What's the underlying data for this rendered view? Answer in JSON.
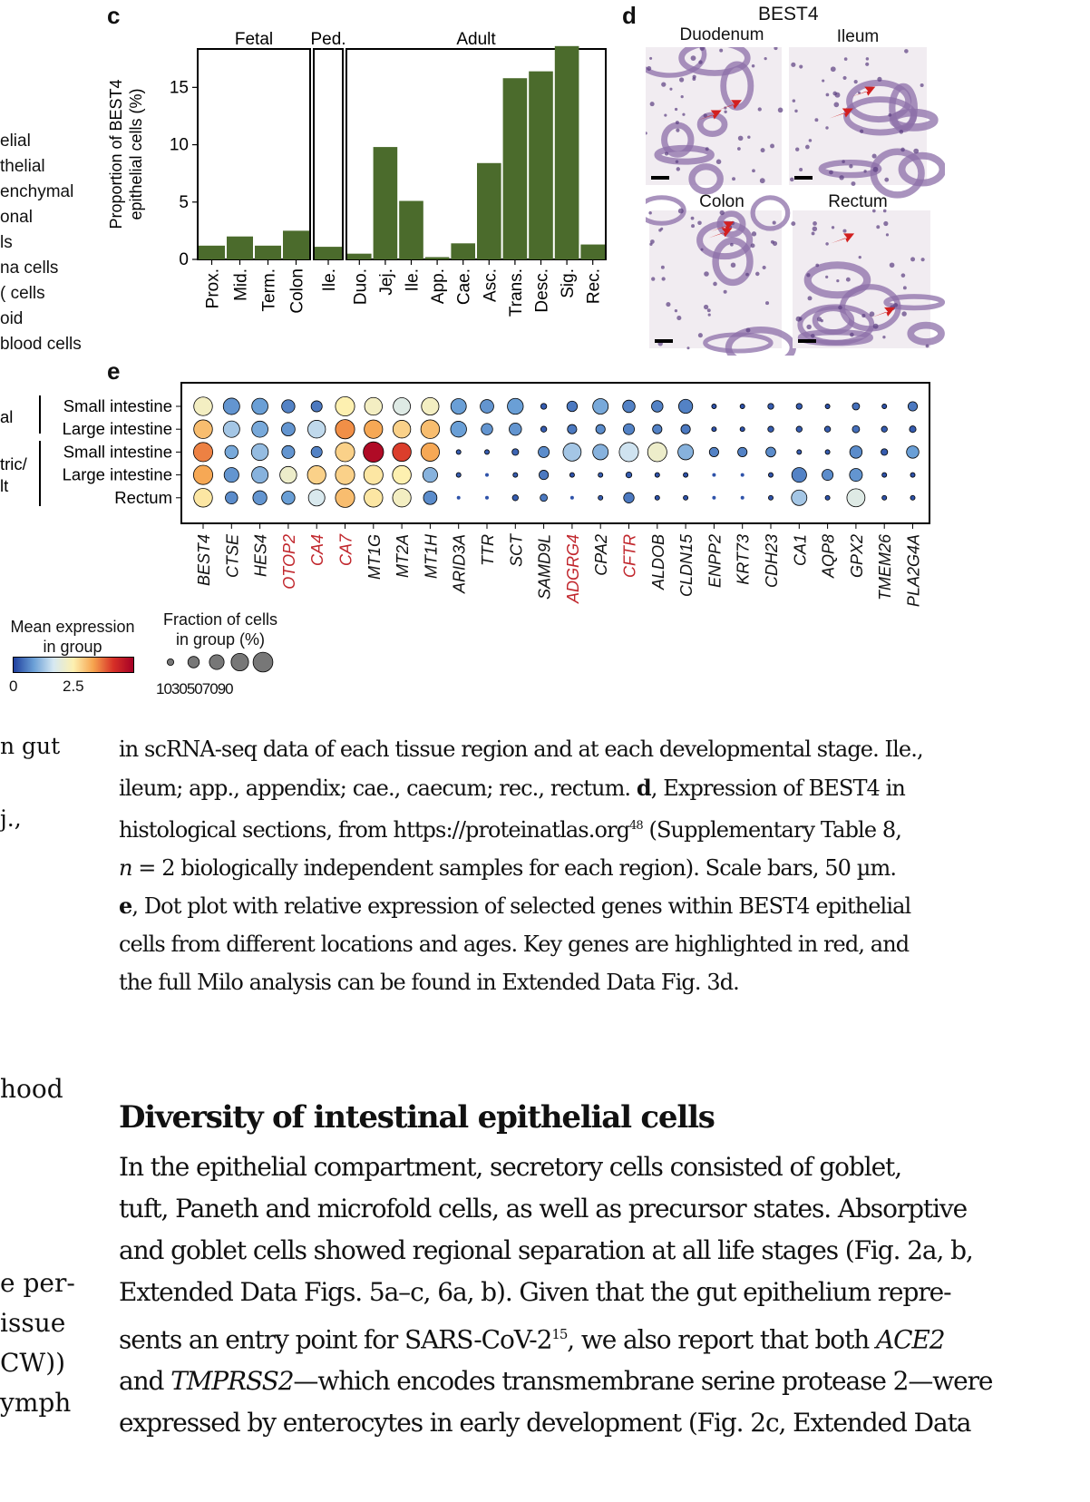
{
  "panel_c": {
    "letter": "c",
    "groups": [
      "Fetal",
      "Ped.",
      "Adult"
    ],
    "ylabel_line1": "Proportion of  BEST4",
    "ylabel_line2": "epithelial cells (%)",
    "yticks": [
      "0",
      "5",
      "10",
      "15"
    ]
  },
  "panel_d": {
    "letter": "d",
    "title": "BEST4",
    "labels": [
      "Duodenum",
      "Ileum",
      "Colon",
      "Rectum"
    ]
  },
  "panel_e": {
    "letter": "e",
    "row_labels": [
      "Small intestine",
      "Large intestine",
      "Small intestine",
      "Large intestine",
      "Rectum"
    ],
    "group_labels": [
      "al",
      "tric/",
      "lt"
    ],
    "genes": [
      "BEST4",
      "CTSE",
      "HES4",
      "OTOP2",
      "CA4",
      "CA7",
      "MT1G",
      "MT2A",
      "MT1H",
      "ARID3A",
      "TTR",
      "SCT",
      "SAMD9L",
      "ADGRG4",
      "CPA2",
      "CFTR",
      "ALDOB",
      "CLDN15",
      "ENPP2",
      "KRT73",
      "CDH23",
      "CA1",
      "AQP8",
      "GPX2",
      "TMEM26",
      "PLA2G4A"
    ],
    "key_genes": [
      "OTOP2",
      "CA4",
      "CA7",
      "ADGRG4",
      "CFTR"
    ],
    "expr_legend_title_1": "Mean expression",
    "expr_legend_title_2": "in group",
    "expr_ticks": [
      "0",
      "2.5"
    ],
    "frac_legend_title_1": "Fraction of cells",
    "frac_legend_title_2": "in group (%)",
    "frac_ticks": [
      "10",
      "30",
      "50",
      "70",
      "90"
    ]
  },
  "left_legend": [
    "elial",
    "thelial",
    "enchymal",
    "onal",
    "ls",
    "na cells",
    "( cells",
    "oid",
    "blood cells"
  ],
  "left_fragments": {
    "caption": [
      "n gut",
      "j.,"
    ],
    "body": [
      "hood",
      "e per-",
      "issue",
      "CW))",
      "ymph"
    ]
  },
  "caption": {
    "line1": "in scRNA-seq data of each tissue region and at each developmental stage. Ile.,",
    "line2": "ileum; app., appendix; cae., caecum; rec., rectum. ",
    "line2_bold": "d",
    "line2_rest": ", Expression of BEST4 in",
    "line3": "histological sections, from https://proteinatlas.org",
    "line3_sup": "48",
    "line3_rest": " (Supplementary Table 8,",
    "line4_italic": "n",
    "line4": " = 2 biologically independent samples for each region). Scale bars, 50 µm.",
    "line5_bold": "e",
    "line5": ", Dot plot with relative expression of selected genes within BEST4 epithelial",
    "line6": "cells from different locations and ages. Key genes are highlighted in red, and",
    "line7": "the full Milo analysis can be found in Extended Data Fig. 3d."
  },
  "section": {
    "heading": "Diversity of intestinal epithelial cells",
    "p1": "In the epithelial compartment, secretory cells consisted of goblet,",
    "p2": "tuft, Paneth and microfold cells, as well as precursor states. Absorptive",
    "p3": "and goblet cells showed regional separation at all life stages (Fig. 2a, b,",
    "p4": "Extended Data Figs. 5a–c, 6a, b). Given that the gut epithelium repre-",
    "p5": "sents an entry point for SARS-CoV-2",
    "p5_sup": "15",
    "p5_rest": ", we also report that both ",
    "p5_ital": "ACE2",
    "p6_ital": "TMPRSS2",
    "p6_pre": "and ",
    "p6_rest": "—which encodes transmembrane serine protease 2—were",
    "p7": "expressed by enterocytes in early development (Fig. 2c, Extended Data"
  },
  "chart_data": [
    {
      "type": "bar",
      "categories": [
        "Prox.",
        "Mid.",
        "Term.",
        "Colon",
        "Ile.",
        "Duo.",
        "Jej.",
        "Ile.",
        "App.",
        "Cae.",
        "Asc.",
        "Trans.",
        "Desc.",
        "Sig.",
        "Rec."
      ],
      "panels": [
        "Fetal",
        "Fetal",
        "Fetal",
        "Fetal",
        "Ped.",
        "Adult",
        "Adult",
        "Adult",
        "Adult",
        "Adult",
        "Adult",
        "Adult",
        "Adult",
        "Adult",
        "Adult"
      ],
      "values": [
        1.2,
        2.0,
        1.2,
        2.5,
        1.1,
        0.5,
        9.8,
        5.1,
        0.2,
        1.4,
        8.4,
        15.8,
        16.4,
        18.6,
        1.3
      ],
      "ylabel": "Proportion of  BEST4 epithelial cells (%)",
      "ylim": [
        0,
        20
      ],
      "yticks": [
        0,
        5,
        10,
        15
      ],
      "color": "#4b6b2c"
    },
    {
      "type": "heatmap",
      "subtype": "dotplot",
      "rows": [
        "Small intestine",
        "Large intestine",
        "Small intestine",
        "Large intestine",
        "Rectum"
      ],
      "columns": [
        "BEST4",
        "CTSE",
        "HES4",
        "OTOP2",
        "CA4",
        "CA7",
        "MT1G",
        "MT2A",
        "MT1H",
        "ARID3A",
        "TTR",
        "SCT",
        "SAMD9L",
        "ADGRG4",
        "CPA2",
        "CFTR",
        "ALDOB",
        "CLDN15",
        "ENPP2",
        "KRT73",
        "CDH23",
        "CA1",
        "AQP8",
        "GPX2",
        "TMEM26",
        "PLA2G4A"
      ],
      "mean_expression": [
        [
          2.3,
          0.9,
          1.0,
          0.7,
          0.6,
          2.5,
          2.3,
          1.9,
          2.3,
          1.0,
          0.9,
          1.0,
          0.3,
          0.6,
          1.1,
          0.7,
          0.7,
          0.7,
          0.2,
          0.2,
          0.3,
          0.3,
          0.2,
          0.5,
          0.2,
          0.6
        ],
        [
          3.0,
          1.4,
          1.1,
          0.9,
          1.6,
          3.4,
          3.2,
          2.8,
          3.0,
          1.0,
          0.9,
          0.9,
          0.3,
          0.6,
          0.8,
          0.7,
          0.7,
          0.6,
          0.2,
          0.2,
          0.3,
          0.3,
          0.3,
          0.5,
          0.3,
          0.3
        ],
        [
          3.5,
          1.1,
          1.3,
          0.9,
          0.7,
          2.8,
          4.8,
          4.0,
          3.2,
          0.3,
          0.3,
          0.4,
          0.8,
          1.4,
          1.2,
          1.7,
          2.2,
          1.2,
          0.7,
          0.7,
          0.8,
          0.3,
          0.3,
          0.8,
          0.3,
          1.0
        ],
        [
          3.2,
          0.9,
          1.2,
          2.2,
          2.8,
          2.8,
          2.6,
          2.5,
          1.2,
          0.3,
          0.2,
          0.3,
          0.6,
          0.2,
          0.3,
          0.3,
          0.2,
          0.2,
          0.2,
          0.2,
          0.2,
          0.7,
          0.8,
          0.9,
          0.2,
          0.2
        ],
        [
          2.6,
          0.8,
          0.9,
          1.0,
          1.8,
          3.0,
          2.6,
          2.3,
          0.8,
          0.2,
          0.2,
          0.3,
          0.6,
          0.2,
          0.3,
          0.6,
          0.2,
          0.2,
          0.2,
          0.2,
          0.2,
          1.4,
          0.2,
          1.9,
          0.2,
          0.2
        ]
      ],
      "fraction_pct": [
        [
          80,
          62,
          60,
          40,
          28,
          85,
          72,
          68,
          70,
          55,
          42,
          58,
          8,
          25,
          55,
          35,
          30,
          45,
          5,
          5,
          8,
          8,
          5,
          12,
          5,
          20
        ],
        [
          80,
          62,
          60,
          42,
          72,
          85,
          78,
          72,
          80,
          58,
          30,
          35,
          8,
          20,
          20,
          28,
          20,
          20,
          5,
          5,
          8,
          8,
          8,
          12,
          8,
          10
        ],
        [
          85,
          40,
          65,
          38,
          28,
          85,
          95,
          80,
          78,
          5,
          5,
          10,
          28,
          75,
          55,
          85,
          85,
          55,
          20,
          20,
          22,
          5,
          5,
          35,
          10,
          35
        ],
        [
          85,
          50,
          62,
          65,
          78,
          85,
          85,
          80,
          50,
          5,
          3,
          5,
          20,
          5,
          5,
          8,
          5,
          5,
          3,
          3,
          5,
          50,
          28,
          38,
          5,
          5
        ],
        [
          80,
          35,
          45,
          40,
          62,
          85,
          80,
          78,
          42,
          3,
          3,
          8,
          12,
          3,
          5,
          25,
          5,
          5,
          3,
          3,
          5,
          55,
          5,
          75,
          5,
          5
        ]
      ],
      "expression_scale": [
        0,
        5
      ],
      "expression_ticks": [
        0,
        2.5
      ],
      "fraction_ticks": [
        10,
        30,
        50,
        70,
        90
      ]
    }
  ]
}
